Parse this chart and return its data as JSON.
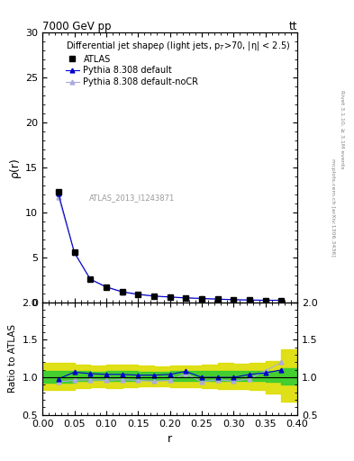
{
  "title_top": "7000 GeV pp",
  "title_top_right": "tt",
  "ylabel_main": "ρ(r)",
  "ylabel_ratio": "Ratio to ATLAS",
  "xlabel": "r",
  "right_label1": "Rivet 3.1.10, ≥ 3.1M events",
  "right_label2": "mcplots.cern.ch [arXiv:1306.3436]",
  "watermark": "ATLAS_2013_I1243871",
  "ylim_main": [
    0,
    30
  ],
  "ylim_ratio": [
    0.5,
    2.0
  ],
  "xlim": [
    0,
    0.4
  ],
  "x_data": [
    0.025,
    0.05,
    0.075,
    0.1,
    0.125,
    0.15,
    0.175,
    0.2,
    0.225,
    0.25,
    0.275,
    0.3,
    0.325,
    0.35,
    0.375
  ],
  "atlas_y": [
    12.3,
    5.6,
    2.6,
    1.7,
    1.15,
    0.88,
    0.68,
    0.58,
    0.48,
    0.42,
    0.36,
    0.3,
    0.26,
    0.22,
    0.2
  ],
  "atlas_xerr": [
    0.025,
    0.025,
    0.025,
    0.025,
    0.025,
    0.025,
    0.025,
    0.025,
    0.025,
    0.025,
    0.025,
    0.025,
    0.025,
    0.025,
    0.025
  ],
  "py308_y": [
    12.1,
    5.55,
    2.58,
    1.72,
    1.18,
    0.9,
    0.7,
    0.6,
    0.5,
    0.44,
    0.36,
    0.3,
    0.26,
    0.23,
    0.23
  ],
  "py308_nocr_y": [
    11.7,
    5.5,
    2.55,
    1.68,
    1.12,
    0.86,
    0.68,
    0.57,
    0.48,
    0.41,
    0.35,
    0.29,
    0.25,
    0.24,
    0.24
  ],
  "ratio_py308": [
    0.98,
    1.07,
    1.05,
    1.04,
    1.04,
    1.03,
    1.03,
    1.04,
    1.08,
    1.0,
    1.0,
    1.0,
    1.04,
    1.06,
    1.1
  ],
  "ratio_py308_nocr": [
    0.94,
    0.96,
    0.97,
    0.96,
    0.97,
    0.96,
    0.95,
    0.96,
    1.05,
    0.94,
    0.97,
    0.95,
    0.98,
    1.09,
    1.2
  ],
  "band_green_lo": [
    0.93,
    0.95,
    0.96,
    0.95,
    0.95,
    0.96,
    0.96,
    0.95,
    0.95,
    0.95,
    0.95,
    0.95,
    0.95,
    0.94,
    0.91
  ],
  "band_green_hi": [
    1.08,
    1.08,
    1.07,
    1.08,
    1.08,
    1.07,
    1.07,
    1.08,
    1.08,
    1.08,
    1.08,
    1.08,
    1.08,
    1.09,
    1.12
  ],
  "band_yellow_lo": [
    0.83,
    0.86,
    0.87,
    0.86,
    0.87,
    0.88,
    0.88,
    0.87,
    0.87,
    0.86,
    0.84,
    0.84,
    0.83,
    0.79,
    0.68
  ],
  "band_yellow_hi": [
    1.19,
    1.17,
    1.16,
    1.17,
    1.17,
    1.16,
    1.15,
    1.16,
    1.16,
    1.17,
    1.19,
    1.18,
    1.19,
    1.22,
    1.37
  ],
  "color_py308": "#0000cc",
  "color_py308_nocr": "#aaaadd",
  "color_atlas": "black",
  "color_green": "#33cc33",
  "color_yellow": "#dddd00",
  "atlas_marker": "s",
  "py_marker": "^",
  "yticks_main": [
    0,
    5,
    10,
    15,
    20,
    25,
    30
  ],
  "yticks_ratio": [
    0.5,
    1.0,
    1.5,
    2.0
  ],
  "legend_title": "Differential jet shapeρ (light jets, p$_T$>70, |η| < 2.5)",
  "legend_entries": [
    "ATLAS",
    "Pythia 8.308 default",
    "Pythia 8.308 default-noCR"
  ]
}
